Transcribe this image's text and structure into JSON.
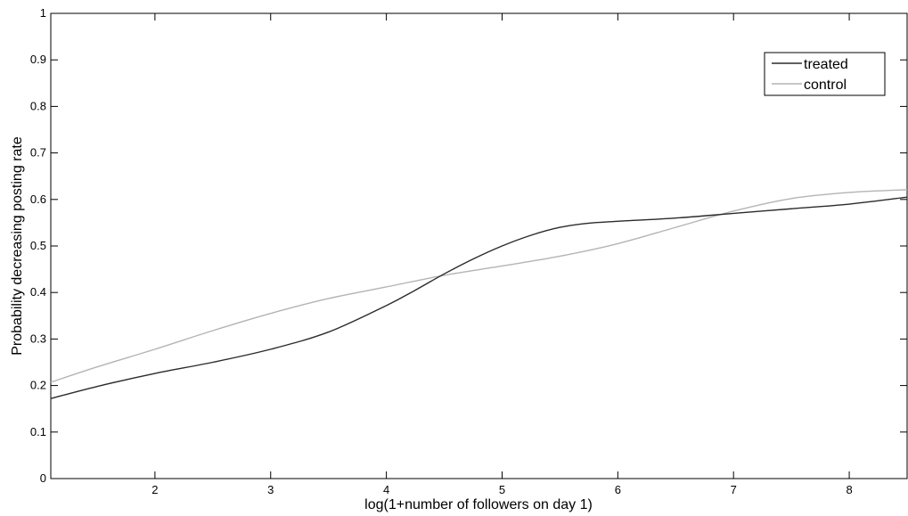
{
  "chart_data": {
    "type": "line",
    "title": "",
    "xlabel": "log(1+number of followers on day 1)",
    "ylabel": "Probability decreasing posting rate",
    "xlim": [
      1.1,
      8.5
    ],
    "ylim": [
      0,
      1
    ],
    "xticks": [
      "2",
      "3",
      "4",
      "5",
      "6",
      "7",
      "8"
    ],
    "yticks": [
      "0",
      "0.1",
      "0.2",
      "0.3",
      "0.4",
      "0.5",
      "0.6",
      "0.7",
      "0.8",
      "0.9",
      "1"
    ],
    "grid": false,
    "legend_position": "top-right",
    "series": [
      {
        "name": "treated",
        "color": "#2b2b2b",
        "x": [
          1.1,
          1.5,
          2.0,
          2.5,
          3.0,
          3.5,
          4.0,
          4.25,
          4.5,
          4.75,
          5.0,
          5.25,
          5.5,
          5.75,
          6.0,
          6.5,
          7.0,
          7.5,
          8.0,
          8.5
        ],
        "y": [
          0.172,
          0.198,
          0.226,
          0.25,
          0.278,
          0.315,
          0.372,
          0.405,
          0.44,
          0.472,
          0.5,
          0.523,
          0.54,
          0.549,
          0.553,
          0.56,
          0.57,
          0.58,
          0.59,
          0.605
        ]
      },
      {
        "name": "control",
        "color": "#b4b4b4",
        "x": [
          1.1,
          1.5,
          2.0,
          2.5,
          3.0,
          3.5,
          4.0,
          4.5,
          5.0,
          5.5,
          6.0,
          6.5,
          7.0,
          7.5,
          8.0,
          8.5
        ],
        "y": [
          0.207,
          0.24,
          0.278,
          0.318,
          0.355,
          0.387,
          0.412,
          0.437,
          0.457,
          0.478,
          0.505,
          0.54,
          0.575,
          0.602,
          0.615,
          0.621
        ]
      }
    ]
  }
}
